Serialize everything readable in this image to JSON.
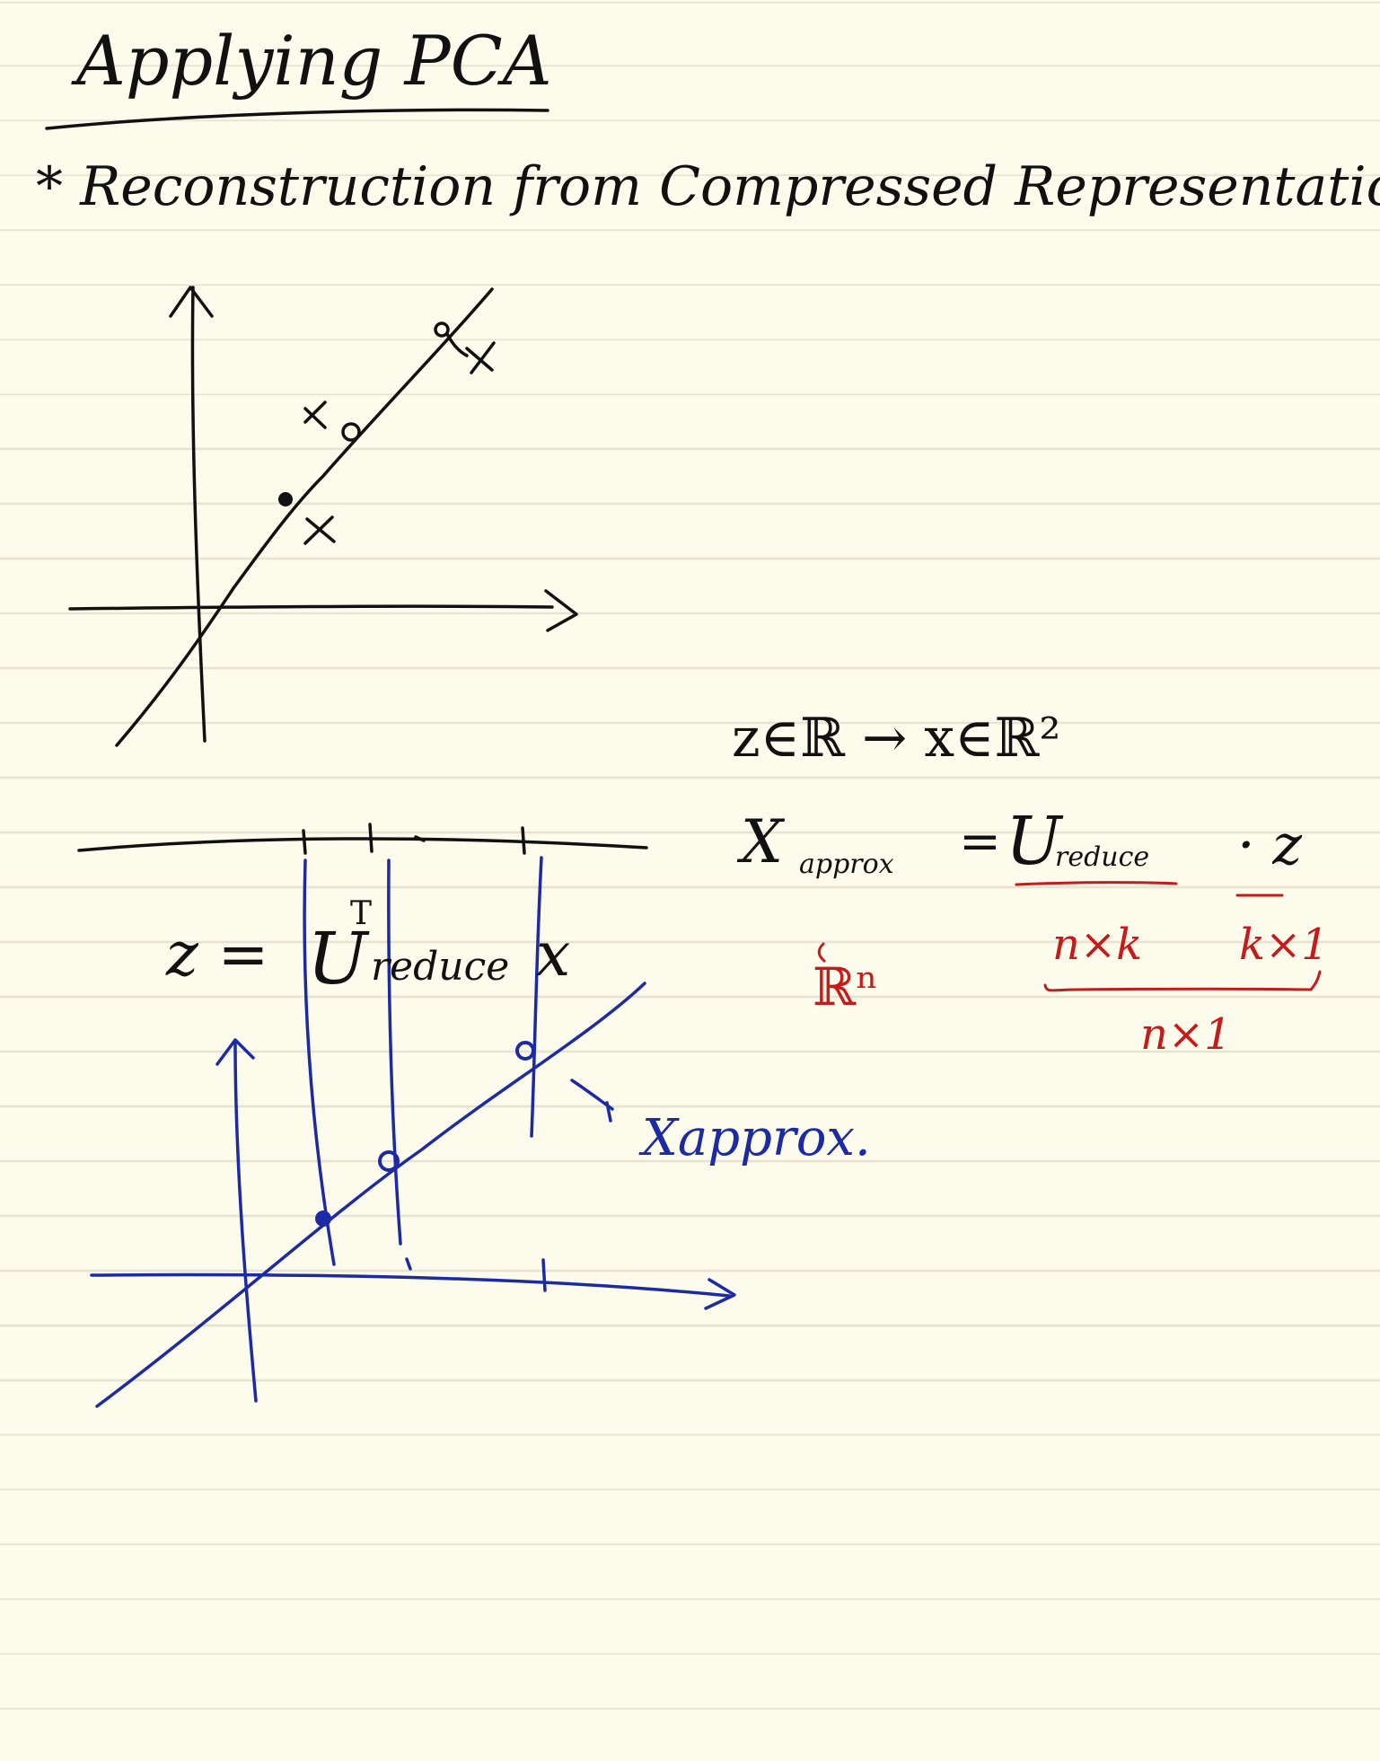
{
  "title": "Applying PCA",
  "subtitle": "* Reconstruction from Compressed Representation",
  "mapping": "z∈ℝ → x∈ℝ²",
  "formula": {
    "lhs": "X",
    "lhs_sub": "approx",
    "equals": "=",
    "u": "U",
    "u_sub": "reduce",
    "dot_z": "· z"
  },
  "dims": {
    "lhs": "ℝⁿ",
    "u": "n×k",
    "z": "k×1",
    "result": "n×1"
  },
  "projection": {
    "lhs": "z =",
    "u": "U",
    "sup": "T",
    "sub": "reduce",
    "rhs": "x"
  },
  "label": "Xapprox.",
  "colors": {
    "paper": "#fdfbeb",
    "rule_line": "#e6e3d2",
    "ink": "#111111",
    "blue": "#1c2aa6",
    "red": "#c81a1a"
  }
}
